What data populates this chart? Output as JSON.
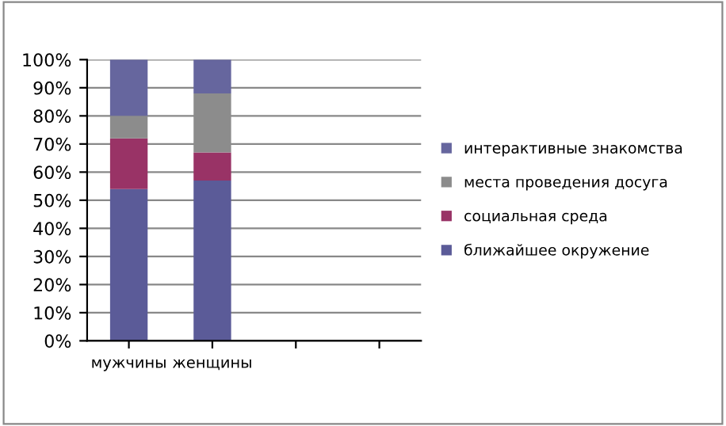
{
  "chart_data": {
    "type": "bar",
    "stacked": true,
    "categories": [
      "мужчины",
      "женщины",
      null,
      null
    ],
    "series": [
      {
        "name": "ближайшее окружение",
        "color": "#5b5b98",
        "values": [
          54,
          57,
          null,
          null
        ]
      },
      {
        "name": "социальная среда",
        "color": "#993366",
        "values": [
          18,
          10,
          null,
          null
        ]
      },
      {
        "name": "места проведения досуга",
        "color": "#8c8c8c",
        "values": [
          8,
          21,
          null,
          null
        ]
      },
      {
        "name": "интерактивные знакомства",
        "color": "#66669e",
        "values": [
          20,
          12,
          null,
          null
        ]
      }
    ],
    "ylim": [
      0,
      100
    ],
    "yticks": [
      {
        "value": 0,
        "label": "0%"
      },
      {
        "value": 10,
        "label": "10%"
      },
      {
        "value": 20,
        "label": "20%"
      },
      {
        "value": 30,
        "label": "30%"
      },
      {
        "value": 40,
        "label": "40%"
      },
      {
        "value": 50,
        "label": "50%"
      },
      {
        "value": 60,
        "label": "60%"
      },
      {
        "value": 70,
        "label": "70%"
      },
      {
        "value": 80,
        "label": "80%"
      },
      {
        "value": 90,
        "label": "90%"
      },
      {
        "value": 100,
        "label": "100%"
      }
    ],
    "grid": "y",
    "legend": "right"
  }
}
